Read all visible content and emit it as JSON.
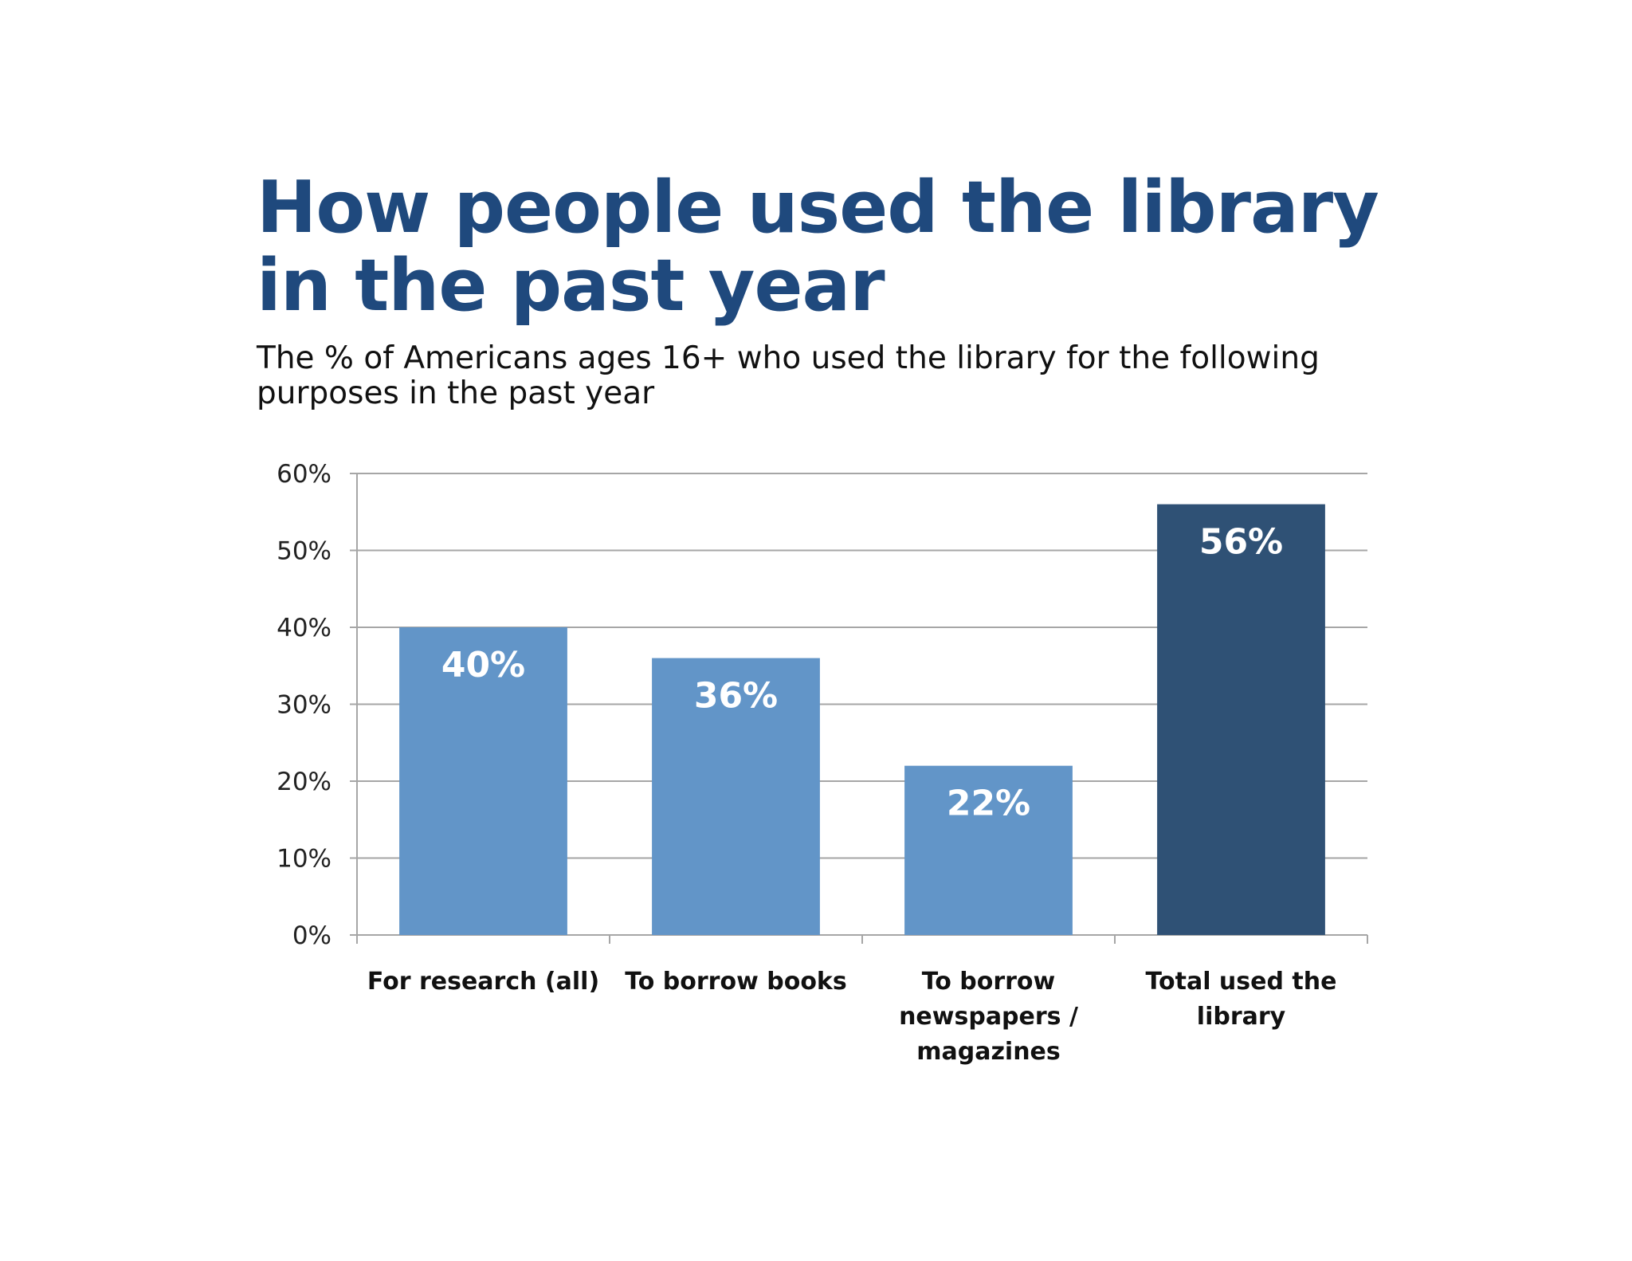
{
  "chart_data": {
    "type": "bar",
    "title": "How people used the library in the past year",
    "subtitle": "The % of Americans ages 16+ who used the library for the following purposes in the past year",
    "categories": [
      [
        "For research (all)"
      ],
      [
        "To borrow books"
      ],
      [
        "To borrow",
        "newspapers /",
        "magazines"
      ],
      [
        "Total used the",
        "library"
      ]
    ],
    "values": [
      40,
      36,
      22,
      56
    ],
    "data_labels": [
      "40%",
      "36%",
      "22%",
      "56%"
    ],
    "ylim": [
      0,
      60
    ],
    "yticks": [
      0,
      10,
      20,
      30,
      40,
      50,
      60
    ],
    "ytick_labels": [
      "0%",
      "10%",
      "20%",
      "30%",
      "40%",
      "50%",
      "60%"
    ],
    "xlabel": "",
    "ylabel": "",
    "grid": true,
    "colors": {
      "bar": "#6295c8",
      "highlight_bar": "#2f5175",
      "grid": "#a6a6a6",
      "title": "#1f497d"
    },
    "highlight_index": 3
  }
}
